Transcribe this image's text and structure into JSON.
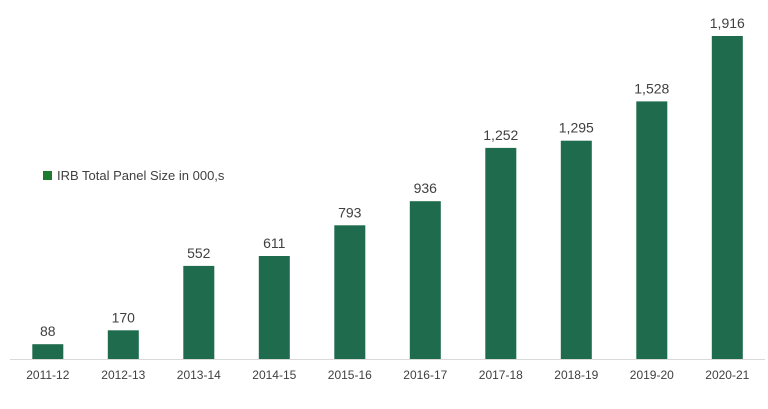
{
  "chart_data": {
    "type": "bar",
    "categories": [
      "2011-12",
      "2012-13",
      "2013-14",
      "2014-15",
      "2015-16",
      "2016-17",
      "2017-18",
      "2018-19",
      "2019-20",
      "2020-21"
    ],
    "series": [
      {
        "name": "IRB Total Panel Size in 000,s",
        "values": [
          88,
          170,
          552,
          611,
          793,
          936,
          1252,
          1295,
          1528,
          1916
        ],
        "value_labels": [
          "88",
          "170",
          "552",
          "611",
          "793",
          "936",
          "1,252",
          "1,295",
          "1,528",
          "1,916"
        ]
      }
    ],
    "title": "",
    "xlabel": "",
    "ylabel": "",
    "ylim": [
      0,
      1950
    ],
    "grid": false,
    "legend_position": "left",
    "colors": {
      "bar": "#1e6b4d",
      "legend_marker": "#1e7a2e",
      "axis": "#d9d9d9",
      "text": "#404040"
    }
  }
}
